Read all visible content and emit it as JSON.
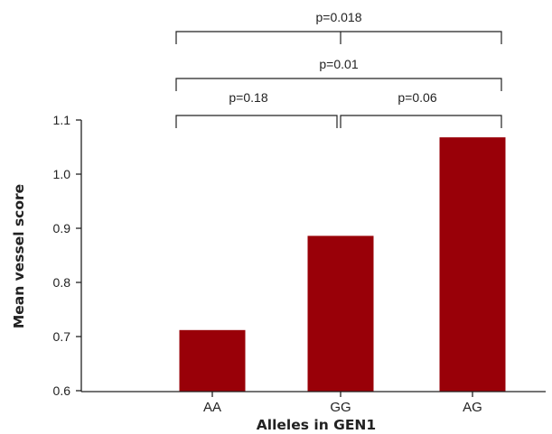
{
  "chart_data": {
    "type": "bar",
    "title": "",
    "xlabel": "Alleles in GEN1",
    "ylabel": "Mean vessel score",
    "categories": [
      "AA",
      "GG",
      "AG"
    ],
    "values": [
      0.712,
      0.886,
      1.068
    ],
    "ylim": [
      0.6,
      1.1
    ],
    "yticks": [
      "0.6",
      "0.7",
      "0.8",
      "0.9",
      "1.0",
      "1.1"
    ],
    "bar_color": "#990008",
    "grid": false,
    "legend": "none",
    "significance": [
      {
        "from": "AA",
        "to": "GG",
        "label": "p=0.18"
      },
      {
        "from": "GG",
        "to": "AG",
        "label": "p=0.06"
      },
      {
        "from": "AA",
        "to": "AG",
        "label": "p=0.01"
      },
      {
        "from": "AA",
        "to": "AG",
        "label": "p=0.018",
        "center_tick": "GG"
      }
    ]
  }
}
